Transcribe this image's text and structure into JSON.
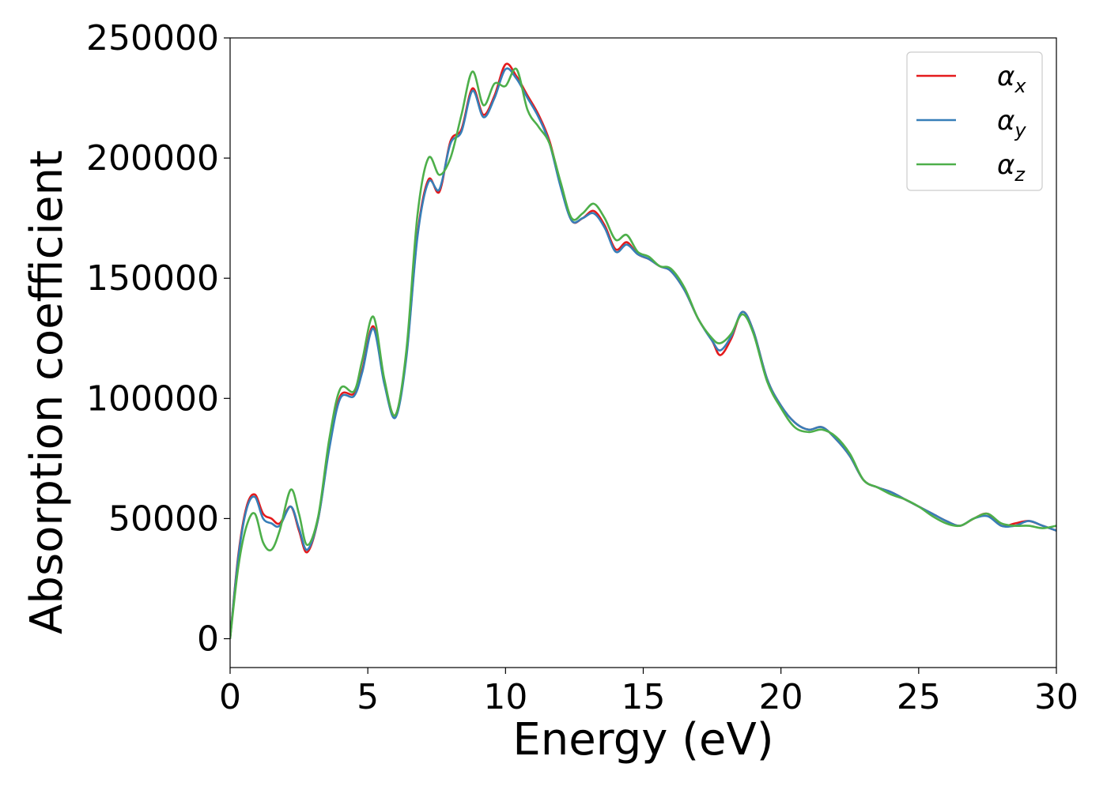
{
  "chart_data": {
    "type": "line",
    "title": "",
    "xlabel": "Energy (eV)",
    "ylabel": "Absorption coefficient",
    "xlim": [
      0,
      30
    ],
    "ylim": [
      -12000,
      250000
    ],
    "xticks": [
      0,
      5,
      10,
      15,
      20,
      25,
      30
    ],
    "yticks": [
      0,
      50000,
      100000,
      150000,
      200000,
      250000
    ],
    "xtick_labels": [
      "0",
      "5",
      "10",
      "15",
      "20",
      "25",
      "30"
    ],
    "ytick_labels": [
      "0",
      "50000",
      "100000",
      "150000",
      "200000",
      "250000"
    ],
    "grid": false,
    "legend_position": "top-right",
    "series": [
      {
        "name": "αx",
        "symbol": "α",
        "subscript": "x",
        "color": "#e41a1c",
        "x": [
          0,
          0.3,
          0.6,
          0.9,
          1.2,
          1.5,
          1.8,
          2.2,
          2.5,
          2.8,
          3.2,
          3.6,
          4.0,
          4.5,
          4.8,
          5.2,
          5.6,
          6.0,
          6.4,
          6.8,
          7.2,
          7.6,
          8.0,
          8.4,
          8.8,
          9.2,
          9.6,
          10.0,
          10.4,
          10.8,
          11.2,
          11.6,
          12.0,
          12.4,
          12.8,
          13.2,
          13.6,
          14.0,
          14.4,
          14.8,
          15.2,
          15.6,
          16.0,
          16.5,
          17.0,
          17.5,
          17.8,
          18.2,
          18.6,
          19.0,
          19.5,
          20.0,
          20.5,
          21.0,
          21.5,
          22.0,
          22.5,
          23.0,
          23.5,
          24.0,
          24.5,
          25.0,
          25.5,
          26.0,
          26.5,
          27.0,
          27.5,
          28.0,
          28.5,
          29.0,
          29.5,
          30.0
        ],
        "values": [
          0,
          35000,
          55000,
          60000,
          52000,
          50000,
          48000,
          55000,
          45000,
          36000,
          50000,
          80000,
          101000,
          102000,
          112000,
          130000,
          107000,
          93000,
          118000,
          168000,
          191000,
          186000,
          207000,
          212000,
          229000,
          218000,
          226000,
          239000,
          234000,
          226000,
          218000,
          207000,
          189000,
          174000,
          175000,
          178000,
          172000,
          162000,
          165000,
          160000,
          158000,
          155000,
          153000,
          145000,
          133000,
          124000,
          118000,
          125000,
          136000,
          128000,
          108000,
          97000,
          90000,
          87000,
          88000,
          83000,
          76000,
          66000,
          63000,
          61000,
          58000,
          55000,
          52000,
          49000,
          47000,
          50000,
          52000,
          47000,
          48000,
          49000,
          47000,
          45000
        ]
      },
      {
        "name": "αy",
        "symbol": "α",
        "subscript": "y",
        "color": "#377eb8",
        "x": [
          0,
          0.3,
          0.6,
          0.9,
          1.2,
          1.5,
          1.8,
          2.2,
          2.5,
          2.8,
          3.2,
          3.6,
          4.0,
          4.5,
          4.8,
          5.2,
          5.6,
          6.0,
          6.4,
          6.8,
          7.2,
          7.6,
          8.0,
          8.4,
          8.8,
          9.2,
          9.6,
          10.0,
          10.4,
          10.8,
          11.2,
          11.6,
          12.0,
          12.4,
          12.8,
          13.2,
          13.6,
          14.0,
          14.4,
          14.8,
          15.2,
          15.6,
          16.0,
          16.5,
          17.0,
          17.5,
          17.8,
          18.2,
          18.6,
          19.0,
          19.5,
          20.0,
          20.5,
          21.0,
          21.5,
          22.0,
          22.5,
          23.0,
          23.5,
          24.0,
          24.5,
          25.0,
          25.5,
          26.0,
          26.5,
          27.0,
          27.5,
          28.0,
          28.5,
          29.0,
          29.5,
          30.0
        ],
        "values": [
          0,
          34000,
          54000,
          59000,
          50000,
          48000,
          47000,
          55000,
          46000,
          37000,
          50000,
          79000,
          100000,
          101000,
          111000,
          129000,
          106000,
          92000,
          117000,
          167000,
          190000,
          187000,
          206000,
          211000,
          228000,
          217000,
          225000,
          237000,
          233000,
          225000,
          217000,
          206000,
          188000,
          174000,
          175000,
          177000,
          171000,
          161000,
          164000,
          160000,
          158000,
          155000,
          153000,
          145000,
          133000,
          124000,
          120000,
          126000,
          136000,
          128000,
          108000,
          97000,
          90000,
          87000,
          88000,
          83000,
          76000,
          66000,
          63000,
          61000,
          58000,
          55000,
          52000,
          49000,
          47000,
          50000,
          51000,
          47000,
          47000,
          49000,
          47000,
          45000
        ]
      },
      {
        "name": "αz",
        "symbol": "α",
        "subscript": "z",
        "color": "#4daf4a",
        "x": [
          0,
          0.3,
          0.6,
          0.9,
          1.2,
          1.5,
          1.8,
          2.2,
          2.5,
          2.8,
          3.2,
          3.6,
          4.0,
          4.5,
          4.8,
          5.2,
          5.6,
          6.0,
          6.4,
          6.8,
          7.2,
          7.6,
          8.0,
          8.4,
          8.8,
          9.2,
          9.6,
          10.0,
          10.4,
          10.8,
          11.2,
          11.6,
          12.0,
          12.4,
          12.8,
          13.2,
          13.6,
          14.0,
          14.4,
          14.8,
          15.2,
          15.6,
          16.0,
          16.5,
          17.0,
          17.5,
          17.8,
          18.2,
          18.6,
          19.0,
          19.5,
          20.0,
          20.5,
          21.0,
          21.5,
          22.0,
          22.5,
          23.0,
          23.5,
          24.0,
          24.5,
          25.0,
          25.5,
          26.0,
          26.5,
          27.0,
          27.5,
          28.0,
          28.5,
          29.0,
          29.5,
          30.0
        ],
        "values": [
          0,
          30000,
          47000,
          52000,
          40000,
          37000,
          45000,
          62000,
          52000,
          39000,
          51000,
          83000,
          104000,
          103000,
          116000,
          134000,
          108000,
          93000,
          120000,
          176000,
          200000,
          193000,
          200000,
          218000,
          236000,
          222000,
          231000,
          230000,
          237000,
          220000,
          213000,
          206000,
          190000,
          175000,
          177000,
          181000,
          175000,
          166000,
          168000,
          161000,
          159000,
          155000,
          154000,
          146000,
          133000,
          125000,
          123000,
          127000,
          135000,
          127000,
          107000,
          96000,
          88000,
          86000,
          87000,
          84000,
          77000,
          66000,
          63000,
          60000,
          58000,
          55000,
          51000,
          48000,
          47000,
          50000,
          52000,
          48000,
          47000,
          47000,
          46000,
          47000
        ]
      }
    ]
  }
}
